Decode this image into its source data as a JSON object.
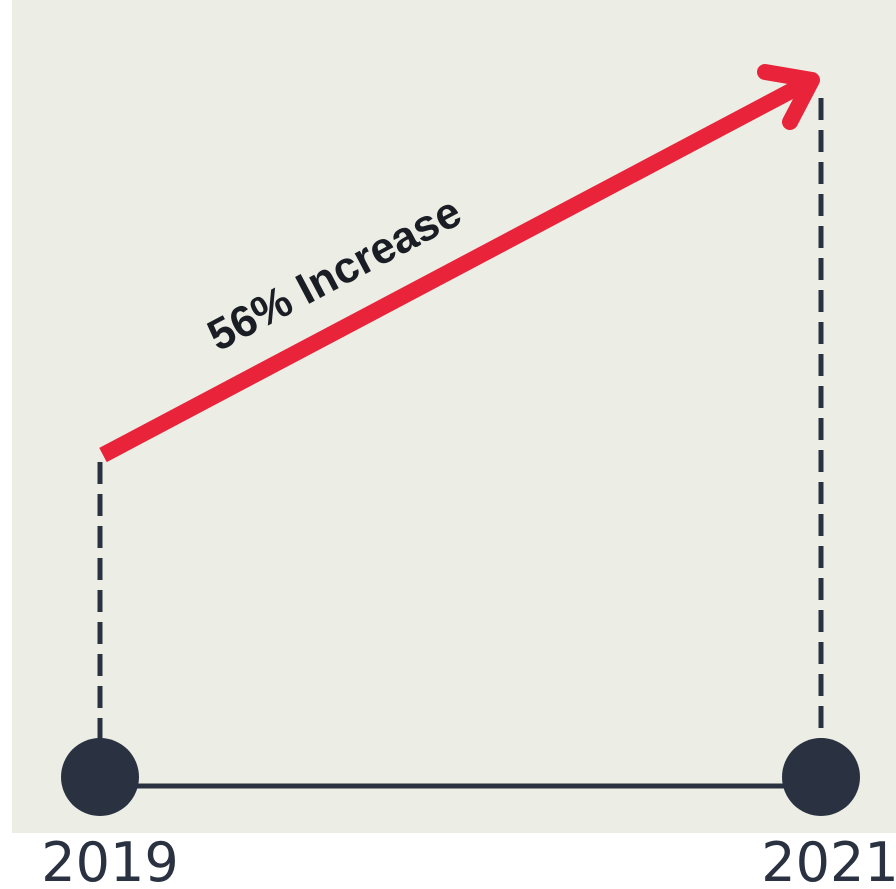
{
  "chart_data": {
    "type": "line",
    "categories": [
      "2019",
      "2021"
    ],
    "annotation": "56% Increase",
    "change_percent": 56,
    "colors": {
      "background": "#eceee6",
      "arrow": "#e8233a",
      "axis": "#2a3140"
    }
  }
}
